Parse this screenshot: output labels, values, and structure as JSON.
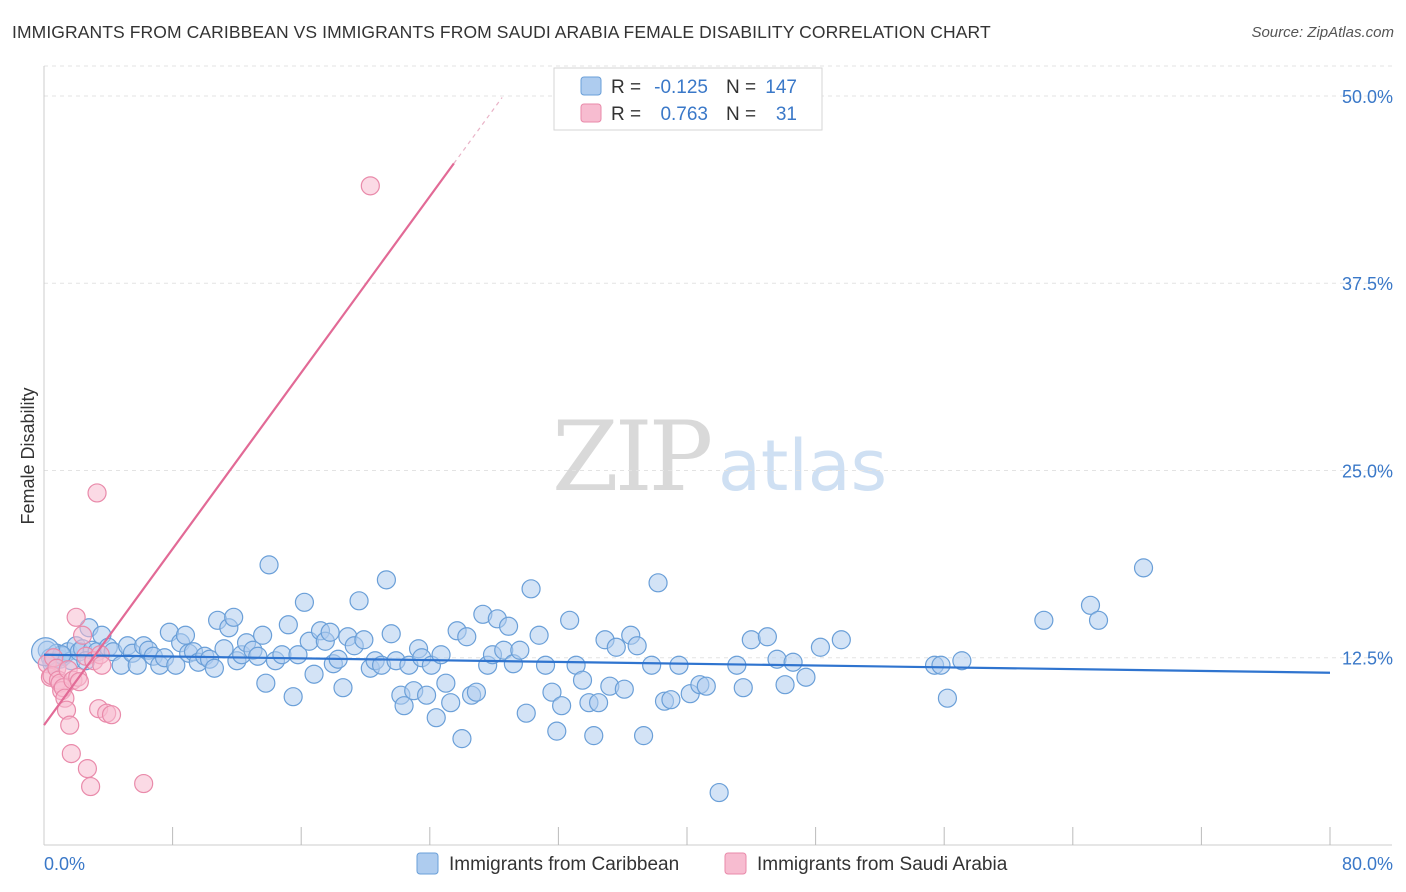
{
  "title": "IMMIGRANTS FROM CARIBBEAN VS IMMIGRANTS FROM SAUDI ARABIA FEMALE DISABILITY CORRELATION CHART",
  "source": "Source: ZipAtlas.com",
  "watermark": {
    "zip": "ZIP",
    "atlas": "atlas"
  },
  "colors": {
    "blue_fill": "#aeccef",
    "blue_stroke": "#6a9fd8",
    "blue_line": "#2f74cf",
    "pink_fill": "#f7bcd0",
    "pink_stroke": "#e98aaa",
    "pink_line": "#e26a96",
    "tick_label": "#3a78c8",
    "grid": "#e3e3e3"
  },
  "legend": {
    "rows": [
      {
        "r_label": "R =",
        "r_value": "-0.125",
        "n_label": "N =",
        "n_value": "147"
      },
      {
        "r_label": "R =",
        "r_value": "0.763",
        "n_label": "N =",
        "n_value": "31"
      }
    ]
  },
  "chart_data": {
    "type": "scatter",
    "title": "IMMIGRANTS FROM CARIBBEAN VS IMMIGRANTS FROM SAUDI ARABIA FEMALE DISABILITY CORRELATION CHART",
    "xlabel": "",
    "ylabel": "Female Disability",
    "xlim": [
      0,
      80
    ],
    "ylim": [
      0,
      52
    ],
    "x_tick_labels": [
      "0.0%",
      "80.0%"
    ],
    "y_ticks": [
      12.5,
      25.0,
      37.5,
      50.0
    ],
    "y_tick_labels": [
      "12.5%",
      "25.0%",
      "37.5%",
      "50.0%"
    ],
    "grid": true,
    "legend_position": "top-center",
    "series": [
      {
        "name": "Immigrants from Caribbean",
        "R": -0.125,
        "N": 147,
        "trend": {
          "x": [
            0,
            80
          ],
          "y": [
            12.7,
            11.5
          ]
        },
        "points": [
          [
            0.2,
            13.0
          ],
          [
            0.4,
            12.5
          ],
          [
            0.6,
            12.2
          ],
          [
            0.8,
            12.8
          ],
          [
            1.0,
            12.4
          ],
          [
            1.2,
            12.6
          ],
          [
            1.5,
            12.9
          ],
          [
            1.7,
            12.3
          ],
          [
            2.0,
            13.3
          ],
          [
            2.2,
            12.9
          ],
          [
            2.4,
            13.1
          ],
          [
            2.8,
            14.5
          ],
          [
            3.0,
            13.0
          ],
          [
            3.3,
            12.9
          ],
          [
            3.6,
            14.0
          ],
          [
            4.0,
            13.2
          ],
          [
            4.3,
            12.9
          ],
          [
            4.8,
            12.0
          ],
          [
            5.2,
            13.3
          ],
          [
            5.5,
            12.8
          ],
          [
            5.8,
            12.0
          ],
          [
            6.2,
            13.3
          ],
          [
            6.5,
            13.0
          ],
          [
            6.8,
            12.6
          ],
          [
            7.2,
            12.0
          ],
          [
            7.5,
            12.5
          ],
          [
            7.8,
            14.2
          ],
          [
            8.2,
            12.0
          ],
          [
            8.5,
            13.5
          ],
          [
            8.8,
            14.0
          ],
          [
            9.0,
            12.8
          ],
          [
            9.3,
            12.9
          ],
          [
            9.6,
            12.2
          ],
          [
            10.0,
            12.6
          ],
          [
            10.3,
            12.4
          ],
          [
            10.6,
            11.8
          ],
          [
            10.8,
            15.0
          ],
          [
            11.2,
            13.1
          ],
          [
            11.5,
            14.5
          ],
          [
            11.8,
            15.2
          ],
          [
            12.0,
            12.3
          ],
          [
            12.3,
            12.7
          ],
          [
            12.6,
            13.5
          ],
          [
            13.0,
            13.0
          ],
          [
            13.3,
            12.6
          ],
          [
            13.6,
            14.0
          ],
          [
            13.8,
            10.8
          ],
          [
            14.0,
            18.7
          ],
          [
            14.4,
            12.3
          ],
          [
            14.8,
            12.7
          ],
          [
            15.2,
            14.7
          ],
          [
            15.5,
            9.9
          ],
          [
            15.8,
            12.7
          ],
          [
            16.2,
            16.2
          ],
          [
            16.5,
            13.6
          ],
          [
            16.8,
            11.4
          ],
          [
            17.2,
            14.3
          ],
          [
            17.5,
            13.6
          ],
          [
            17.8,
            14.2
          ],
          [
            18.0,
            12.1
          ],
          [
            18.3,
            12.4
          ],
          [
            18.6,
            10.5
          ],
          [
            18.9,
            13.9
          ],
          [
            19.3,
            13.3
          ],
          [
            19.6,
            16.3
          ],
          [
            19.9,
            13.7
          ],
          [
            20.3,
            11.8
          ],
          [
            20.6,
            12.3
          ],
          [
            21.0,
            12.0
          ],
          [
            21.3,
            17.7
          ],
          [
            21.6,
            14.1
          ],
          [
            21.9,
            12.3
          ],
          [
            22.2,
            10.0
          ],
          [
            22.4,
            9.3
          ],
          [
            22.7,
            12.0
          ],
          [
            23.0,
            10.3
          ],
          [
            23.3,
            13.1
          ],
          [
            23.5,
            12.5
          ],
          [
            23.8,
            10.0
          ],
          [
            24.1,
            12.0
          ],
          [
            24.4,
            8.5
          ],
          [
            24.7,
            12.7
          ],
          [
            25.0,
            10.8
          ],
          [
            25.3,
            9.5
          ],
          [
            25.7,
            14.3
          ],
          [
            26.0,
            7.1
          ],
          [
            26.3,
            13.9
          ],
          [
            26.6,
            10.0
          ],
          [
            26.9,
            10.2
          ],
          [
            27.3,
            15.4
          ],
          [
            27.6,
            12.0
          ],
          [
            27.9,
            12.7
          ],
          [
            28.2,
            15.1
          ],
          [
            28.6,
            13.0
          ],
          [
            28.9,
            14.6
          ],
          [
            29.2,
            12.1
          ],
          [
            29.6,
            13.0
          ],
          [
            30.0,
            8.8
          ],
          [
            30.3,
            17.1
          ],
          [
            30.8,
            14.0
          ],
          [
            31.2,
            12.0
          ],
          [
            31.6,
            10.2
          ],
          [
            31.9,
            7.6
          ],
          [
            32.2,
            9.3
          ],
          [
            32.7,
            15.0
          ],
          [
            33.1,
            12.0
          ],
          [
            33.5,
            11.0
          ],
          [
            33.9,
            9.5
          ],
          [
            34.2,
            7.3
          ],
          [
            34.5,
            9.5
          ],
          [
            34.9,
            13.7
          ],
          [
            35.2,
            10.6
          ],
          [
            35.6,
            13.2
          ],
          [
            36.1,
            10.4
          ],
          [
            36.5,
            14.0
          ],
          [
            36.9,
            13.3
          ],
          [
            37.3,
            7.3
          ],
          [
            37.8,
            12.0
          ],
          [
            38.2,
            17.5
          ],
          [
            38.6,
            9.6
          ],
          [
            39.0,
            9.7
          ],
          [
            39.5,
            12.0
          ],
          [
            40.2,
            10.1
          ],
          [
            40.8,
            10.7
          ],
          [
            41.2,
            10.6
          ],
          [
            42.0,
            3.5
          ],
          [
            43.1,
            12.0
          ],
          [
            43.5,
            10.5
          ],
          [
            44.0,
            13.7
          ],
          [
            45.0,
            13.9
          ],
          [
            45.6,
            12.4
          ],
          [
            46.1,
            10.7
          ],
          [
            46.6,
            12.2
          ],
          [
            47.4,
            11.2
          ],
          [
            48.3,
            13.2
          ],
          [
            49.6,
            13.7
          ],
          [
            55.4,
            12.0
          ],
          [
            55.8,
            12.0
          ],
          [
            56.2,
            9.8
          ],
          [
            57.1,
            12.3
          ],
          [
            62.2,
            15.0
          ],
          [
            65.1,
            16.0
          ],
          [
            65.6,
            15.0
          ],
          [
            68.4,
            18.5
          ],
          [
            0.5,
            12.1
          ],
          [
            1.1,
            12.7
          ],
          [
            2.6,
            12.3
          ]
        ]
      },
      {
        "name": "Immigrants from Saudi Arabia",
        "R": 0.763,
        "N": 31,
        "trend": {
          "x": [
            0,
            25.5
          ],
          "y": [
            8.0,
            45.5
          ]
        },
        "trend_dashed": {
          "x": [
            25.5,
            28.5
          ],
          "y": [
            45.5,
            49.9
          ]
        },
        "points": [
          [
            0.2,
            12.1
          ],
          [
            0.4,
            11.2
          ],
          [
            0.5,
            11.3
          ],
          [
            0.6,
            12.5
          ],
          [
            0.8,
            11.8
          ],
          [
            0.9,
            11.0
          ],
          [
            1.0,
            10.8
          ],
          [
            1.1,
            10.3
          ],
          [
            1.2,
            10.5
          ],
          [
            1.3,
            9.8
          ],
          [
            1.4,
            9.0
          ],
          [
            1.5,
            11.7
          ],
          [
            1.6,
            8.0
          ],
          [
            1.7,
            6.1
          ],
          [
            1.8,
            11.0
          ],
          [
            2.0,
            15.2
          ],
          [
            2.1,
            11.2
          ],
          [
            2.2,
            10.9
          ],
          [
            2.4,
            14.0
          ],
          [
            2.6,
            12.6
          ],
          [
            2.7,
            5.1
          ],
          [
            2.9,
            3.9
          ],
          [
            3.1,
            12.3
          ],
          [
            3.3,
            23.5
          ],
          [
            3.4,
            9.1
          ],
          [
            3.5,
            12.7
          ],
          [
            3.6,
            12.0
          ],
          [
            3.9,
            8.8
          ],
          [
            4.2,
            8.7
          ],
          [
            6.2,
            4.1
          ],
          [
            20.3,
            44.0
          ]
        ]
      }
    ]
  },
  "bottom_legend": [
    {
      "label": "Immigrants from Caribbean"
    },
    {
      "label": "Immigrants from Saudi Arabia"
    }
  ]
}
